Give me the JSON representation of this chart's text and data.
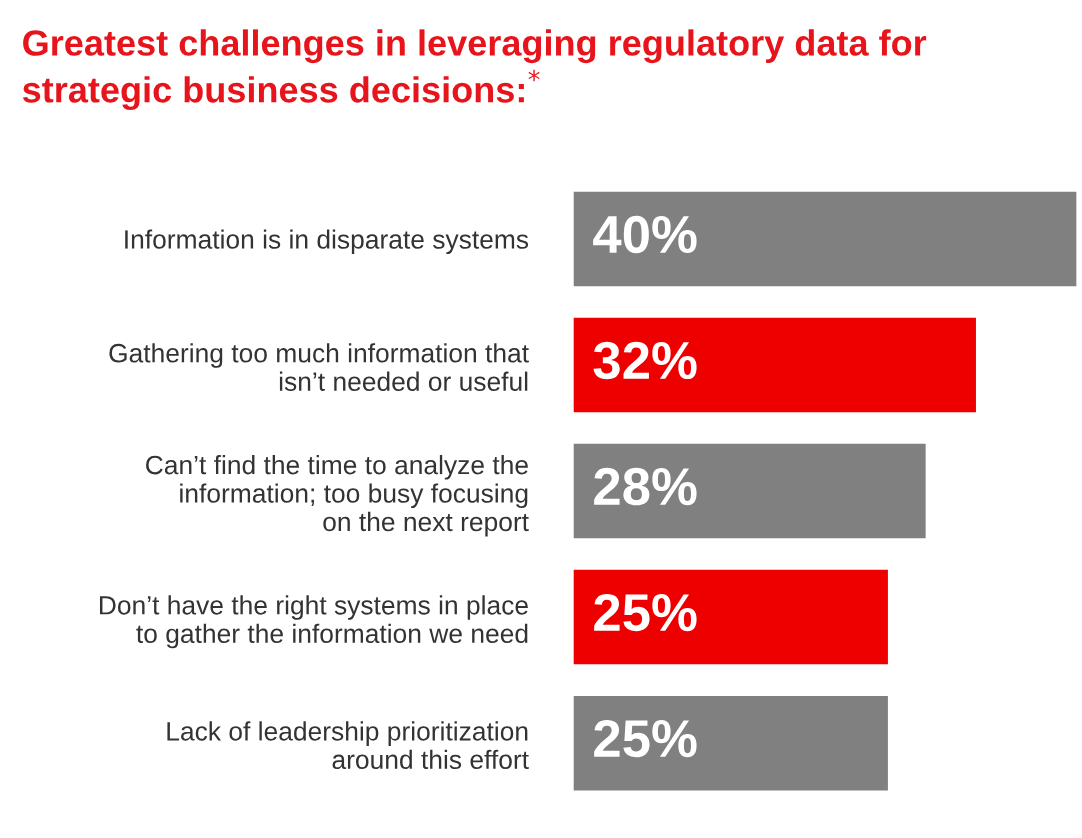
{
  "chart_data": {
    "type": "bar",
    "orientation": "horizontal",
    "title": "Greatest challenges in leveraging regulatory data for\nstrategic business decisions:$^{*}$",
    "categories": [
      "Information is in disparate systems",
      "Gathering too much information that\nisn’t needed or useful",
      "Can’t find the time to analyze the\ninformation; too busy focusing\non the next report",
      "Don’t have the right systems in place\nto gather the information we need",
      "Lack of leadership prioritization\naround this effort"
    ],
    "values": [
      40,
      32,
      28,
      25,
      25
    ],
    "colors": [
      "#808080",
      "#ee0000",
      "#808080",
      "#ee0000",
      "#808080"
    ],
    "value_labels": [
      "40%",
      "32%",
      "28%",
      "25%",
      "25%"
    ],
    "grid": false,
    "legend": false
  }
}
